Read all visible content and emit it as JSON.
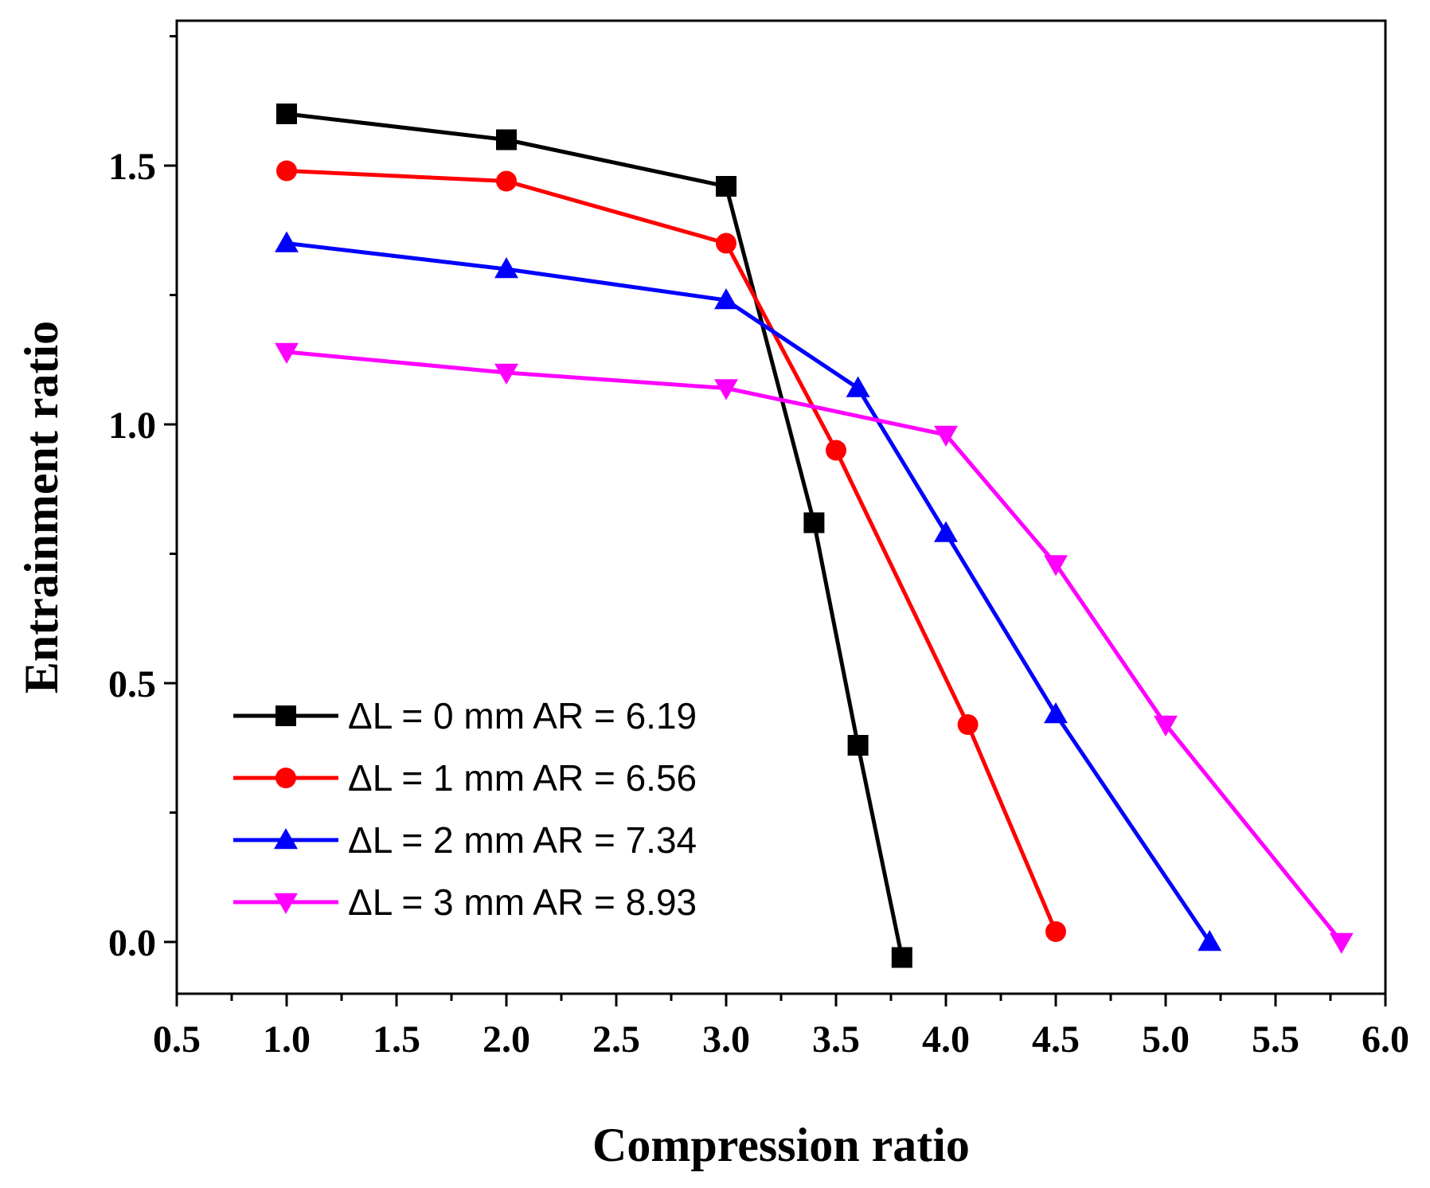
{
  "chart_data": {
    "type": "line",
    "title": "",
    "xlabel": "Compression ratio",
    "ylabel": "Entrainment ratio",
    "xlim": [
      0.5,
      6.0
    ],
    "ylim": [
      -0.1,
      1.78
    ],
    "xticks": [
      "0.5",
      "1.0",
      "1.5",
      "2.0",
      "2.5",
      "3.0",
      "3.5",
      "4.0",
      "4.5",
      "5.0",
      "5.5",
      "6.0"
    ],
    "yticks": [
      "0.0",
      "0.5",
      "1.0",
      "1.5"
    ],
    "legend_position": "lower-left",
    "series": [
      {
        "name": "ΔL = 0 mm AR = 6.19",
        "color": "#000000",
        "marker": "square",
        "x": [
          1.0,
          2.0,
          3.0,
          3.4,
          3.6,
          3.8
        ],
        "y": [
          1.6,
          1.55,
          1.46,
          0.81,
          0.38,
          -0.03
        ]
      },
      {
        "name": "ΔL = 1 mm AR = 6.56",
        "color": "#ff0000",
        "marker": "circle",
        "x": [
          1.0,
          2.0,
          3.0,
          3.5,
          4.1,
          4.5
        ],
        "y": [
          1.49,
          1.47,
          1.35,
          0.95,
          0.42,
          0.02
        ]
      },
      {
        "name": "ΔL = 2 mm AR = 7.34",
        "color": "#0000ff",
        "marker": "triangle-up",
        "x": [
          1.0,
          2.0,
          3.0,
          3.6,
          4.0,
          4.5,
          5.2
        ],
        "y": [
          1.35,
          1.3,
          1.24,
          1.07,
          0.79,
          0.44,
          0.0
        ]
      },
      {
        "name": "ΔL = 3 mm AR = 8.93",
        "color": "#ff00ff",
        "marker": "triangle-down",
        "x": [
          1.0,
          2.0,
          3.0,
          4.0,
          4.5,
          5.0,
          5.8
        ],
        "y": [
          1.14,
          1.1,
          1.07,
          0.98,
          0.73,
          0.42,
          0.0
        ]
      }
    ]
  }
}
